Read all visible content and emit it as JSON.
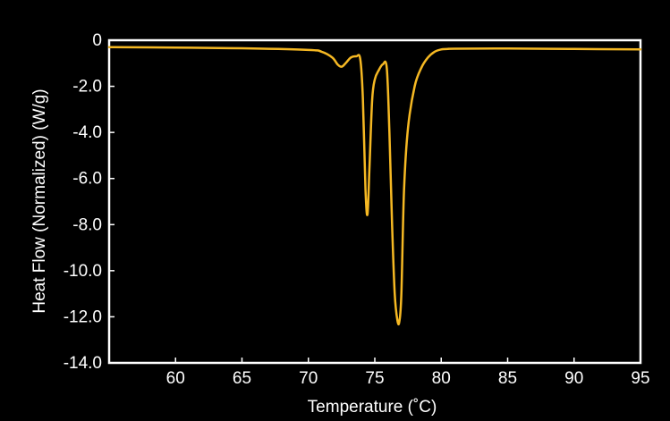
{
  "colors": {
    "background": "#000000",
    "axis": "#ffffff",
    "text": "#ffffff",
    "series": "#f5b823"
  },
  "chart_data": {
    "type": "line",
    "title": "",
    "xlabel": "Temperature (˚C)",
    "ylabel": "Heat Flow (Normalized) (W/g)",
    "xlim": [
      55,
      95
    ],
    "ylim": [
      -14.0,
      0
    ],
    "grid": false,
    "x_ticks": [
      60,
      65,
      70,
      75,
      80,
      85,
      90,
      95
    ],
    "x_tick_labels": [
      "60",
      "65",
      "70",
      "75",
      "80",
      "85",
      "90",
      "95"
    ],
    "y_ticks": [
      0,
      -2,
      -4,
      -6,
      -8,
      -10,
      -12,
      -14
    ],
    "y_tick_labels": [
      "0",
      "-2.0",
      "-4.0",
      "-6.0",
      "-8.0",
      "-10.0",
      "-12.0",
      "-14.0"
    ],
    "series": [
      {
        "x": [
          55.0,
          60.0,
          65.0,
          70.0,
          71.0,
          71.8,
          72.2,
          72.5,
          72.8,
          73.2,
          73.6,
          73.9,
          74.1,
          74.3,
          74.45,
          74.6,
          74.8,
          75.0,
          75.3,
          75.6,
          75.9,
          76.1,
          76.3,
          76.5,
          76.7,
          76.85,
          77.0,
          77.2,
          77.5,
          78.0,
          78.5,
          79.0,
          79.5,
          80.0,
          80.5,
          81.0,
          85.0,
          90.0,
          95.0
        ],
        "y": [
          -0.3,
          -0.32,
          -0.35,
          -0.42,
          -0.5,
          -0.75,
          -1.05,
          -1.15,
          -1.0,
          -0.75,
          -0.7,
          -0.8,
          -2.5,
          -6.5,
          -7.55,
          -5.5,
          -2.6,
          -1.7,
          -1.3,
          -1.05,
          -1.2,
          -4.0,
          -8.0,
          -11.0,
          -12.15,
          -12.2,
          -11.0,
          -6.5,
          -3.8,
          -2.0,
          -1.2,
          -0.75,
          -0.5,
          -0.4,
          -0.38,
          -0.37,
          -0.36,
          -0.38,
          -0.4
        ]
      }
    ]
  }
}
